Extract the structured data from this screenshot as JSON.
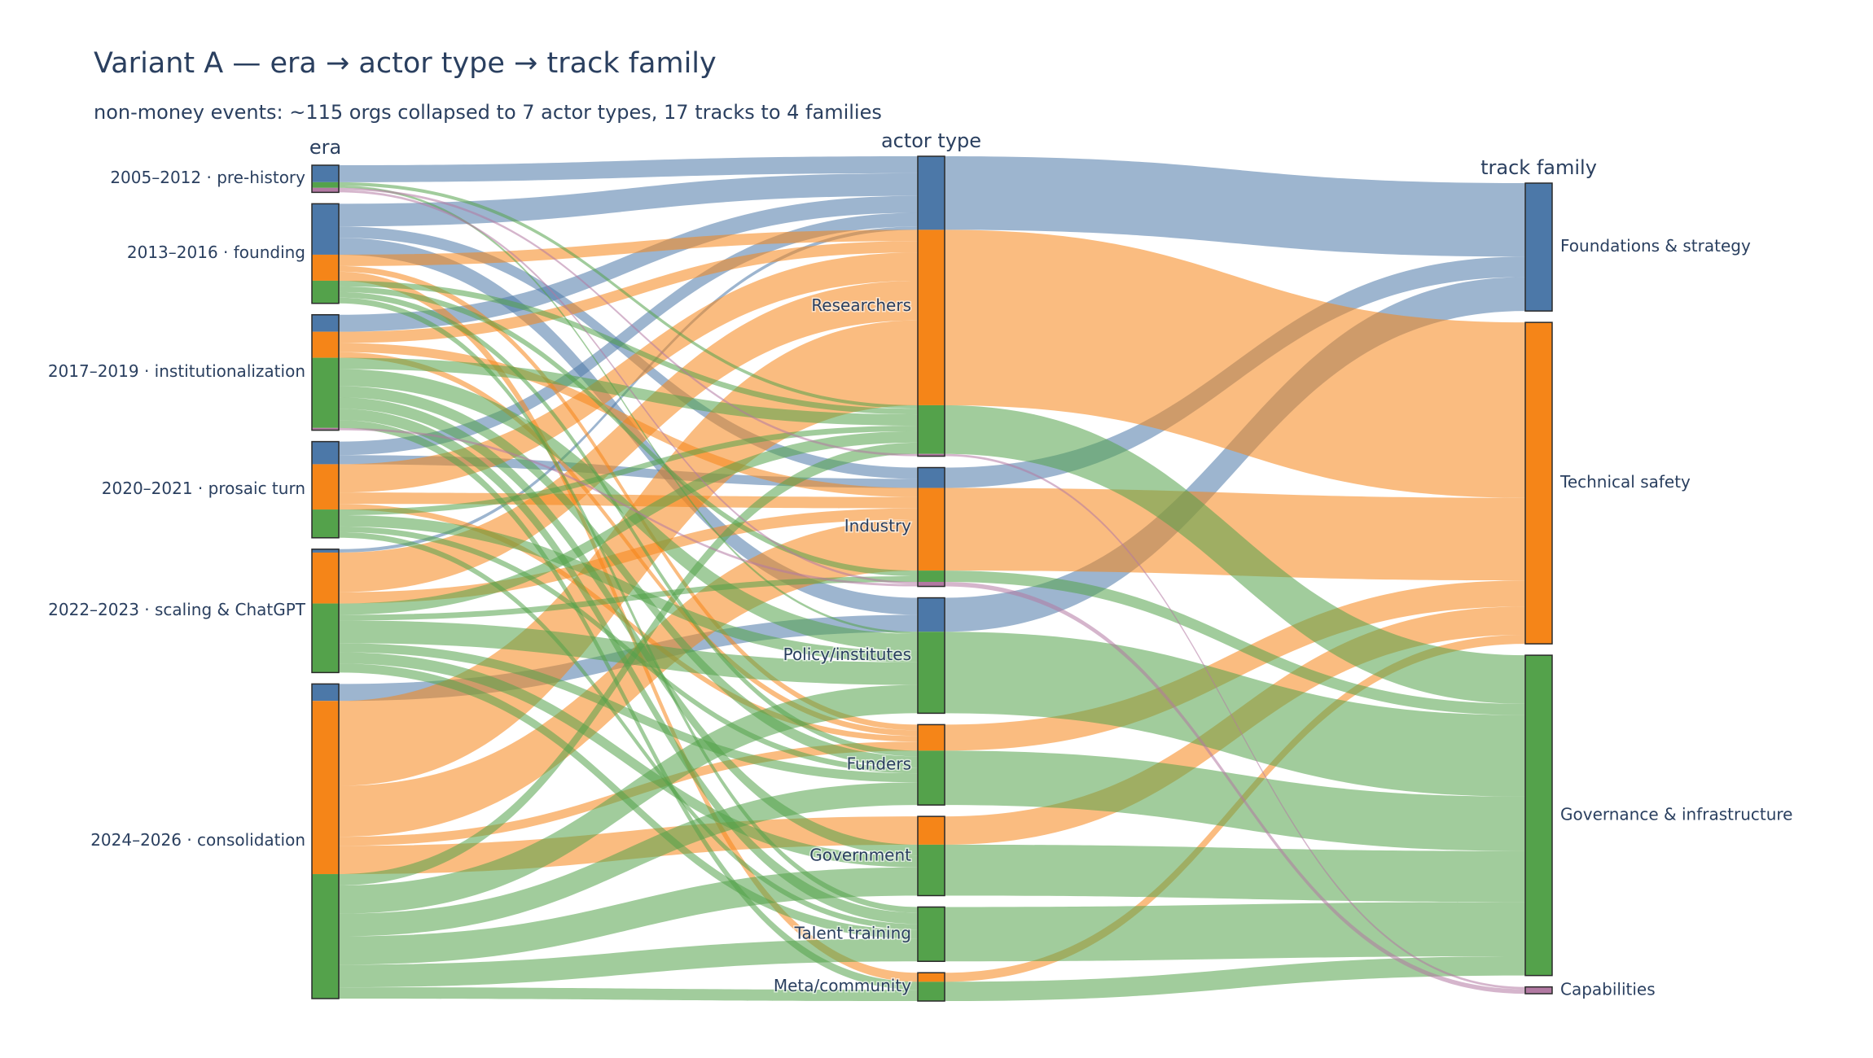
{
  "chart_data": {
    "type": "sankey",
    "title": "Variant A — era → actor type → track family",
    "subtitle": "non-money events: ~115 orgs collapsed to 7 actor types, 17 tracks to 4 families",
    "columns": [
      "era",
      "actor type",
      "track family"
    ],
    "families": [
      {
        "id": "F",
        "name": "Foundations & strategy",
        "color": "#4c78a8"
      },
      {
        "id": "T",
        "name": "Technical safety",
        "color": "#f58518"
      },
      {
        "id": "G",
        "name": "Governance & infrastructure",
        "color": "#54a24b"
      },
      {
        "id": "C",
        "name": "Capabilities",
        "color": "#b279a2"
      }
    ],
    "eras": [
      {
        "id": "E0",
        "name": "2005–2012 · pre-history"
      },
      {
        "id": "E1",
        "name": "2013–2016 · founding"
      },
      {
        "id": "E2",
        "name": "2017–2019 · institutionalization"
      },
      {
        "id": "E3",
        "name": "2020–2021 · prosaic turn"
      },
      {
        "id": "E4",
        "name": "2022–2023 · scaling & ChatGPT"
      },
      {
        "id": "E5",
        "name": "2024–2026 · consolidation"
      }
    ],
    "actors": [
      {
        "id": "A0",
        "name": "Researchers"
      },
      {
        "id": "A1",
        "name": "Industry"
      },
      {
        "id": "A2",
        "name": "Policy/institutes"
      },
      {
        "id": "A3",
        "name": "Funders"
      },
      {
        "id": "A4",
        "name": "Government"
      },
      {
        "id": "A5",
        "name": "Talent training"
      },
      {
        "id": "A6",
        "name": "Meta/community"
      }
    ],
    "flows_era_actor": [
      {
        "era": "E0",
        "actor": "A0",
        "family": "F",
        "value": 1.5
      },
      {
        "era": "E0",
        "actor": "A0",
        "family": "G",
        "value": 0.3
      },
      {
        "era": "E0",
        "actor": "A0",
        "family": "C",
        "value": 0.2
      },
      {
        "era": "E0",
        "actor": "A2",
        "family": "G",
        "value": 0.2
      },
      {
        "era": "E0",
        "actor": "A1",
        "family": "C",
        "value": 0.2
      },
      {
        "era": "E1",
        "actor": "A0",
        "family": "F",
        "value": 2.0
      },
      {
        "era": "E1",
        "actor": "A1",
        "family": "F",
        "value": 1.0
      },
      {
        "era": "E1",
        "actor": "A2",
        "family": "F",
        "value": 1.5
      },
      {
        "era": "E1",
        "actor": "A0",
        "family": "T",
        "value": 1.0
      },
      {
        "era": "E1",
        "actor": "A3",
        "family": "T",
        "value": 0.5
      },
      {
        "era": "E1",
        "actor": "A6",
        "family": "T",
        "value": 0.8
      },
      {
        "era": "E1",
        "actor": "A0",
        "family": "G",
        "value": 0.5
      },
      {
        "era": "E1",
        "actor": "A1",
        "family": "G",
        "value": 0.5
      },
      {
        "era": "E1",
        "actor": "A3",
        "family": "G",
        "value": 0.5
      },
      {
        "era": "E1",
        "actor": "A5",
        "family": "G",
        "value": 0.5
      },
      {
        "era": "E2",
        "actor": "A0",
        "family": "F",
        "value": 1.5
      },
      {
        "era": "E2",
        "actor": "A0",
        "family": "T",
        "value": 1.0
      },
      {
        "era": "E2",
        "actor": "A1",
        "family": "T",
        "value": 0.8
      },
      {
        "era": "E2",
        "actor": "A3",
        "family": "T",
        "value": 0.5
      },
      {
        "era": "E2",
        "actor": "A0",
        "family": "G",
        "value": 1.0
      },
      {
        "era": "E2",
        "actor": "A2",
        "family": "G",
        "value": 1.5
      },
      {
        "era": "E2",
        "actor": "A3",
        "family": "G",
        "value": 1.0
      },
      {
        "era": "E2",
        "actor": "A4",
        "family": "G",
        "value": 1.0
      },
      {
        "era": "E2",
        "actor": "A5",
        "family": "G",
        "value": 1.0
      },
      {
        "era": "E2",
        "actor": "A6",
        "family": "G",
        "value": 0.7
      },
      {
        "era": "E2",
        "actor": "A1",
        "family": "C",
        "value": 0.2
      },
      {
        "era": "E3",
        "actor": "A0",
        "family": "F",
        "value": 1.2
      },
      {
        "era": "E3",
        "actor": "A1",
        "family": "F",
        "value": 0.8
      },
      {
        "era": "E3",
        "actor": "A0",
        "family": "T",
        "value": 2.5
      },
      {
        "era": "E3",
        "actor": "A1",
        "family": "T",
        "value": 1.0
      },
      {
        "era": "E3",
        "actor": "A3",
        "family": "T",
        "value": 0.5
      },
      {
        "era": "E3",
        "actor": "A0",
        "family": "G",
        "value": 0.5
      },
      {
        "era": "E3",
        "actor": "A2",
        "family": "G",
        "value": 1.0
      },
      {
        "era": "E3",
        "actor": "A3",
        "family": "G",
        "value": 0.5
      },
      {
        "era": "E3",
        "actor": "A5",
        "family": "G",
        "value": 0.5
      },
      {
        "era": "E4",
        "actor": "A0",
        "family": "F",
        "value": 0.3
      },
      {
        "era": "E4",
        "actor": "A0",
        "family": "T",
        "value": 3.5
      },
      {
        "era": "E4",
        "actor": "A1",
        "family": "T",
        "value": 1.0
      },
      {
        "era": "E4",
        "actor": "A0",
        "family": "G",
        "value": 1.0
      },
      {
        "era": "E4",
        "actor": "A1",
        "family": "G",
        "value": 0.5
      },
      {
        "era": "E4",
        "actor": "A2",
        "family": "G",
        "value": 2.0
      },
      {
        "era": "E4",
        "actor": "A3",
        "family": "G",
        "value": 0.8
      },
      {
        "era": "E4",
        "actor": "A4",
        "family": "G",
        "value": 1.0
      },
      {
        "era": "E4",
        "actor": "A5",
        "family": "G",
        "value": 0.8
      },
      {
        "era": "E5",
        "actor": "A2",
        "family": "F",
        "value": 1.5
      },
      {
        "era": "E5",
        "actor": "A0",
        "family": "T",
        "value": 7.5
      },
      {
        "era": "E5",
        "actor": "A1",
        "family": "T",
        "value": 4.5
      },
      {
        "era": "E5",
        "actor": "A4",
        "family": "T",
        "value": 2.5
      },
      {
        "era": "E5",
        "actor": "A3",
        "family": "T",
        "value": 0.8
      },
      {
        "era": "E5",
        "actor": "A0",
        "family": "G",
        "value": 1.0
      },
      {
        "era": "E5",
        "actor": "A2",
        "family": "G",
        "value": 2.5
      },
      {
        "era": "E5",
        "actor": "A3",
        "family": "G",
        "value": 2.0
      },
      {
        "era": "E5",
        "actor": "A4",
        "family": "G",
        "value": 2.5
      },
      {
        "era": "E5",
        "actor": "A5",
        "family": "G",
        "value": 2.0
      },
      {
        "era": "E5",
        "actor": "A6",
        "family": "G",
        "value": 1.0
      }
    ],
    "flows_actor_family": [
      {
        "actor": "A0",
        "family": "F",
        "value": 6.5
      },
      {
        "actor": "A0",
        "family": "T",
        "value": 15.5
      },
      {
        "actor": "A0",
        "family": "G",
        "value": 4.3
      },
      {
        "actor": "A0",
        "family": "C",
        "value": 0.2
      },
      {
        "actor": "A1",
        "family": "F",
        "value": 1.8
      },
      {
        "actor": "A1",
        "family": "T",
        "value": 7.3
      },
      {
        "actor": "A1",
        "family": "G",
        "value": 1.0
      },
      {
        "actor": "A1",
        "family": "C",
        "value": 0.4
      },
      {
        "actor": "A2",
        "family": "F",
        "value": 3.0
      },
      {
        "actor": "A2",
        "family": "G",
        "value": 7.2
      },
      {
        "actor": "A3",
        "family": "T",
        "value": 2.3
      },
      {
        "actor": "A3",
        "family": "G",
        "value": 4.8
      },
      {
        "actor": "A4",
        "family": "T",
        "value": 2.5
      },
      {
        "actor": "A4",
        "family": "G",
        "value": 4.5
      },
      {
        "actor": "A5",
        "family": "G",
        "value": 4.8
      },
      {
        "actor": "A6",
        "family": "T",
        "value": 0.8
      },
      {
        "actor": "A6",
        "family": "G",
        "value": 1.7
      }
    ]
  }
}
